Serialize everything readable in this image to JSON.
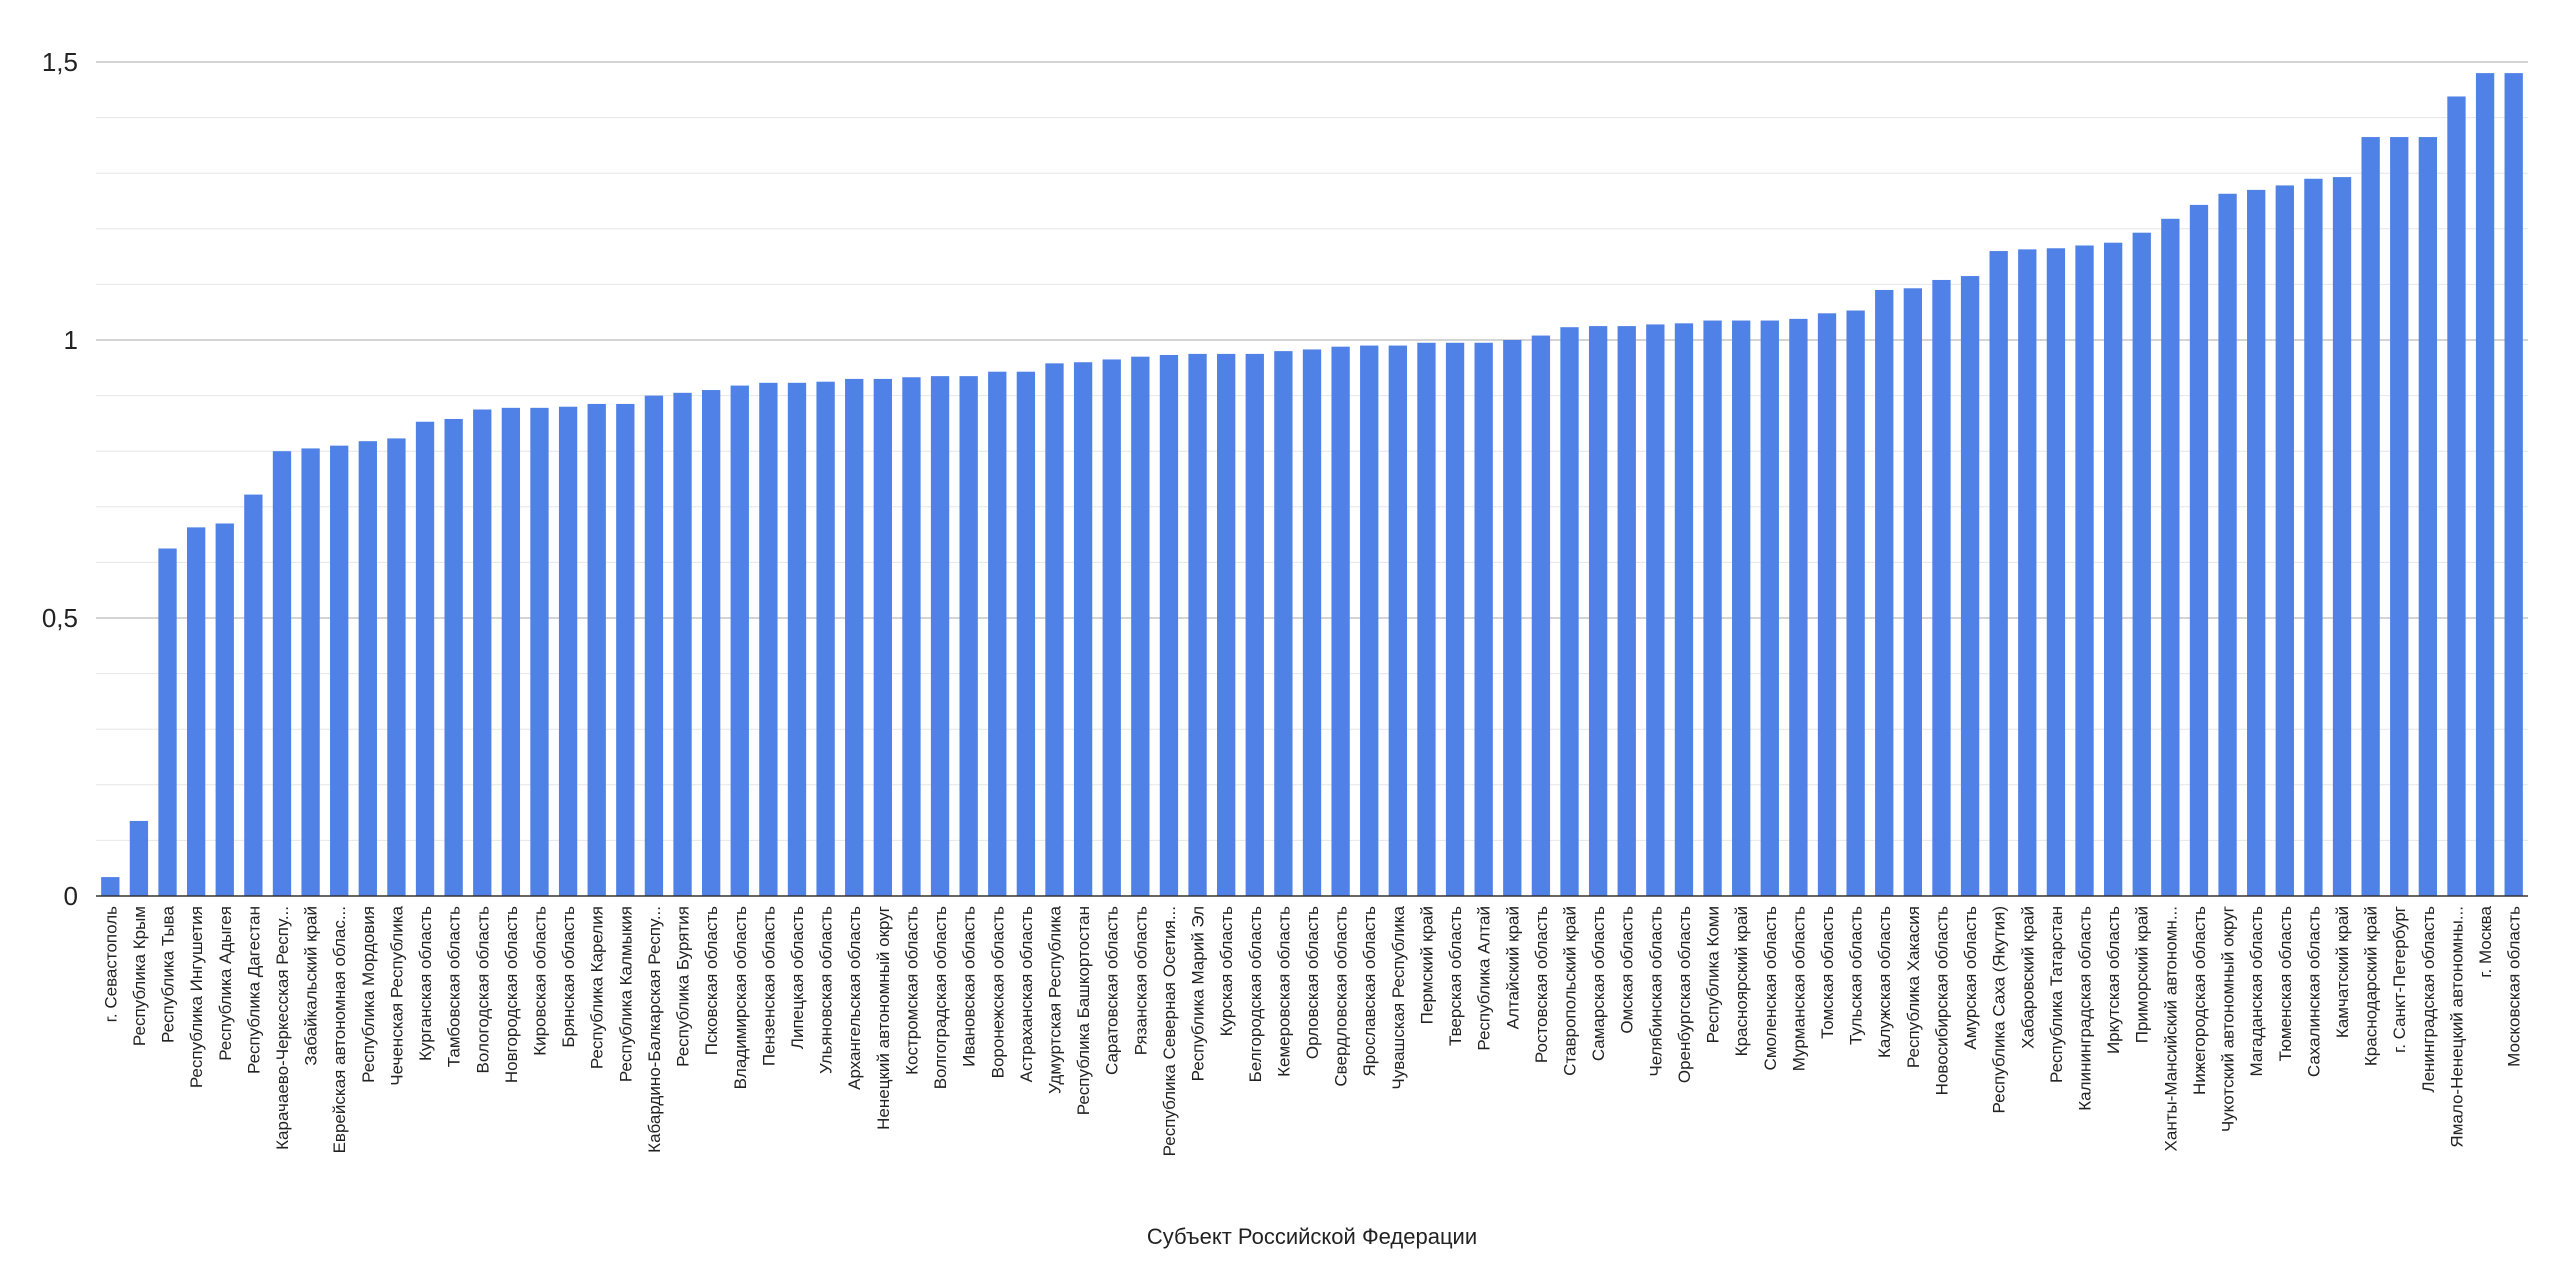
{
  "colors": {
    "bar": "#4F81E6",
    "major_grid": "#C6C6C6",
    "minor_grid": "#E6E6E6",
    "axis": "#333333",
    "text": "#222222"
  },
  "chart_data": {
    "type": "bar",
    "title": "",
    "xlabel": "Субъект Российской Федерации",
    "ylabel": "",
    "ylim": [
      0,
      1.5
    ],
    "y_ticks": [
      {
        "value": 0,
        "label": "0"
      },
      {
        "value": 0.5,
        "label": "0,5"
      },
      {
        "value": 1,
        "label": "1"
      },
      {
        "value": 1.5,
        "label": "1,5"
      }
    ],
    "minor_grid_step": 0.1,
    "grid": true,
    "legend": "none",
    "categories": [
      "г. Севастополь",
      "Республика Крым",
      "Республика Тыва",
      "Республика Ингушетия",
      "Республика Адыгея",
      "Республика Дагестан",
      "Карачаево-Черкесская Респу...",
      "Забайкальский край",
      "Еврейская автономная облас...",
      "Республика Мордовия",
      "Чеченская Республика",
      "Курганская область",
      "Тамбовская область",
      "Вологодская область",
      "Новгородская область",
      "Кировская область",
      "Брянская область",
      "Республика Карелия",
      "Республика Калмыкия",
      "Кабардино-Балкарская Респу...",
      "Республика Бурятия",
      "Псковская область",
      "Владимирская область",
      "Пензенская область",
      "Липецкая область",
      "Ульяновская область",
      "Архангельская область",
      "Ненецкий автономный округ",
      "Костромская область",
      "Волгоградская область",
      "Ивановская область",
      "Воронежская область",
      "Астраханская область",
      "Удмуртская Республика",
      "Республика Башкортостан",
      "Саратовская область",
      "Рязанская область",
      "Республика Северная Осетия...",
      "Республика Марий Эл",
      "Курская область",
      "Белгородская область",
      "Кемеровская область",
      "Орловская область",
      "Свердловская область",
      "Ярославская область",
      "Чувашская Республика",
      "Пермский край",
      "Тверская область",
      "Республика Алтай",
      "Алтайский край",
      "Ростовская область",
      "Ставропольский край",
      "Самарская область",
      "Омская область",
      "Челябинская область",
      "Оренбургская область",
      "Республика Коми",
      "Красноярский край",
      "Смоленская область",
      "Мурманская область",
      "Томская область",
      "Тульская область",
      "Калужская область",
      "Республика Хакасия",
      "Новосибирская область",
      "Амурская область",
      "Республика Саха (Якутия)",
      "Хабаровский край",
      "Республика Татарстан",
      "Калининградская область",
      "Иркутская область",
      "Приморский край",
      "Ханты-Мансийский автономн...",
      "Нижегородская область",
      "Чукотский автономный округ",
      "Магаданская область",
      "Тюменская область",
      "Сахалинская область",
      "Камчатский край",
      "Краснодарский край",
      "г. Санкт-Петербург",
      "Ленинградская область",
      "Ямало-Ненецкий автономны...",
      "г. Москва",
      "Московская область"
    ],
    "values": [
      0.034,
      0.135,
      0.625,
      0.663,
      0.67,
      0.722,
      0.8,
      0.805,
      0.81,
      0.818,
      0.823,
      0.853,
      0.858,
      0.875,
      0.878,
      0.878,
      0.88,
      0.885,
      0.885,
      0.9,
      0.905,
      0.91,
      0.918,
      0.923,
      0.923,
      0.925,
      0.93,
      0.93,
      0.933,
      0.935,
      0.935,
      0.943,
      0.943,
      0.958,
      0.96,
      0.965,
      0.97,
      0.973,
      0.975,
      0.975,
      0.975,
      0.98,
      0.983,
      0.988,
      0.99,
      0.99,
      0.995,
      0.995,
      0.995,
      1.0,
      1.008,
      1.023,
      1.025,
      1.025,
      1.028,
      1.03,
      1.035,
      1.035,
      1.035,
      1.038,
      1.048,
      1.053,
      1.09,
      1.093,
      1.108,
      1.115,
      1.16,
      1.163,
      1.165,
      1.17,
      1.175,
      1.193,
      1.218,
      1.243,
      1.263,
      1.27,
      1.278,
      1.29,
      1.293,
      1.365,
      1.365,
      1.365,
      1.438,
      1.48,
      1.48
    ]
  }
}
